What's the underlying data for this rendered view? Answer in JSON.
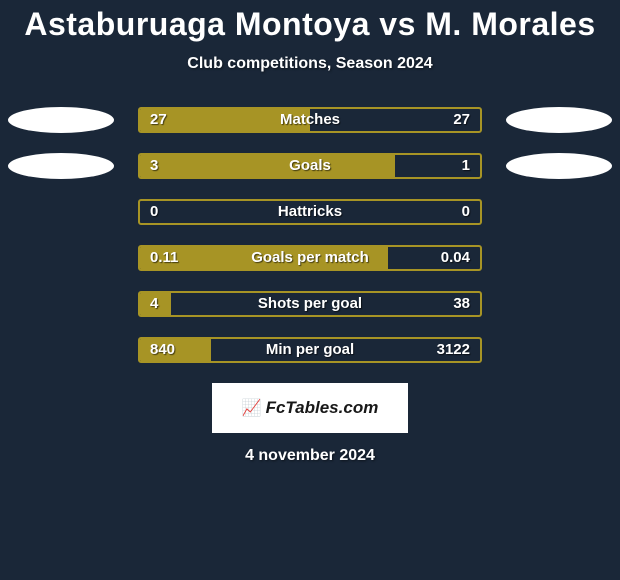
{
  "colors": {
    "page_bg": "#1a2738",
    "title": "#ffffff",
    "subtitle": "#ffffff",
    "bar_border": "#a79425",
    "bar_fill": "#a79425",
    "bar_track_bg": "transparent",
    "bar_label": "#ffffff",
    "value_text": "#ffffff",
    "flag_fill": "#ffffff",
    "logo_bg": "#ffffff",
    "logo_text": "#181818",
    "date_text": "#ffffff"
  },
  "title": "Astaburuaga Montoya vs M. Morales",
  "subtitle": "Club competitions, Season 2024",
  "date": "4 november 2024",
  "logo": "FcTables.com",
  "flags": {
    "show_on_rows": [
      0,
      1
    ]
  },
  "rows": [
    {
      "label": "Matches",
      "left": "27",
      "right": "27",
      "fill_pct": 50
    },
    {
      "label": "Goals",
      "left": "3",
      "right": "1",
      "fill_pct": 75
    },
    {
      "label": "Hattricks",
      "left": "0",
      "right": "0",
      "fill_pct": 0
    },
    {
      "label": "Goals per match",
      "left": "0.11",
      "right": "0.04",
      "fill_pct": 73
    },
    {
      "label": "Shots per goal",
      "left": "4",
      "right": "38",
      "fill_pct": 9
    },
    {
      "label": "Min per goal",
      "left": "840",
      "right": "3122",
      "fill_pct": 21
    }
  ]
}
